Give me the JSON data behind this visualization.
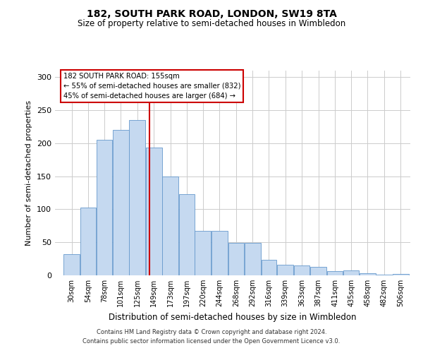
{
  "title1": "182, SOUTH PARK ROAD, LONDON, SW19 8TA",
  "title2": "Size of property relative to semi-detached houses in Wimbledon",
  "xlabel": "Distribution of semi-detached houses by size in Wimbledon",
  "ylabel": "Number of semi-detached properties",
  "footer1": "Contains HM Land Registry data © Crown copyright and database right 2024.",
  "footer2": "Contains public sector information licensed under the Open Government Licence v3.0.",
  "annotation_line1": "182 SOUTH PARK ROAD: 155sqm",
  "annotation_line2": "← 55% of semi-detached houses are smaller (832)",
  "annotation_line3": "45% of semi-detached houses are larger (684) →",
  "property_size": 155,
  "bar_left_edges": [
    30,
    54,
    78,
    101,
    125,
    149,
    173,
    197,
    220,
    244,
    268,
    292,
    316,
    339,
    363,
    387,
    411,
    435,
    458,
    482,
    506
  ],
  "bar_widths": [
    24,
    24,
    23,
    24,
    24,
    24,
    24,
    23,
    24,
    24,
    24,
    24,
    23,
    24,
    24,
    24,
    24,
    23,
    24,
    24,
    24
  ],
  "bar_heights": [
    32,
    103,
    205,
    220,
    235,
    193,
    150,
    123,
    67,
    67,
    49,
    49,
    24,
    16,
    15,
    13,
    6,
    7,
    3,
    1,
    2
  ],
  "tick_labels": [
    "30sqm",
    "54sqm",
    "78sqm",
    "101sqm",
    "125sqm",
    "149sqm",
    "173sqm",
    "197sqm",
    "220sqm",
    "244sqm",
    "268sqm",
    "292sqm",
    "316sqm",
    "339sqm",
    "363sqm",
    "387sqm",
    "411sqm",
    "435sqm",
    "458sqm",
    "482sqm",
    "506sqm"
  ],
  "bar_color": "#c5d9f0",
  "bar_edge_color": "#6699cc",
  "grid_color": "#cccccc",
  "annotation_box_edge": "#cc0000",
  "vertical_line_color": "#cc0000",
  "background_color": "#ffffff",
  "ylim": [
    0,
    310
  ],
  "yticks": [
    0,
    50,
    100,
    150,
    200,
    250,
    300
  ]
}
